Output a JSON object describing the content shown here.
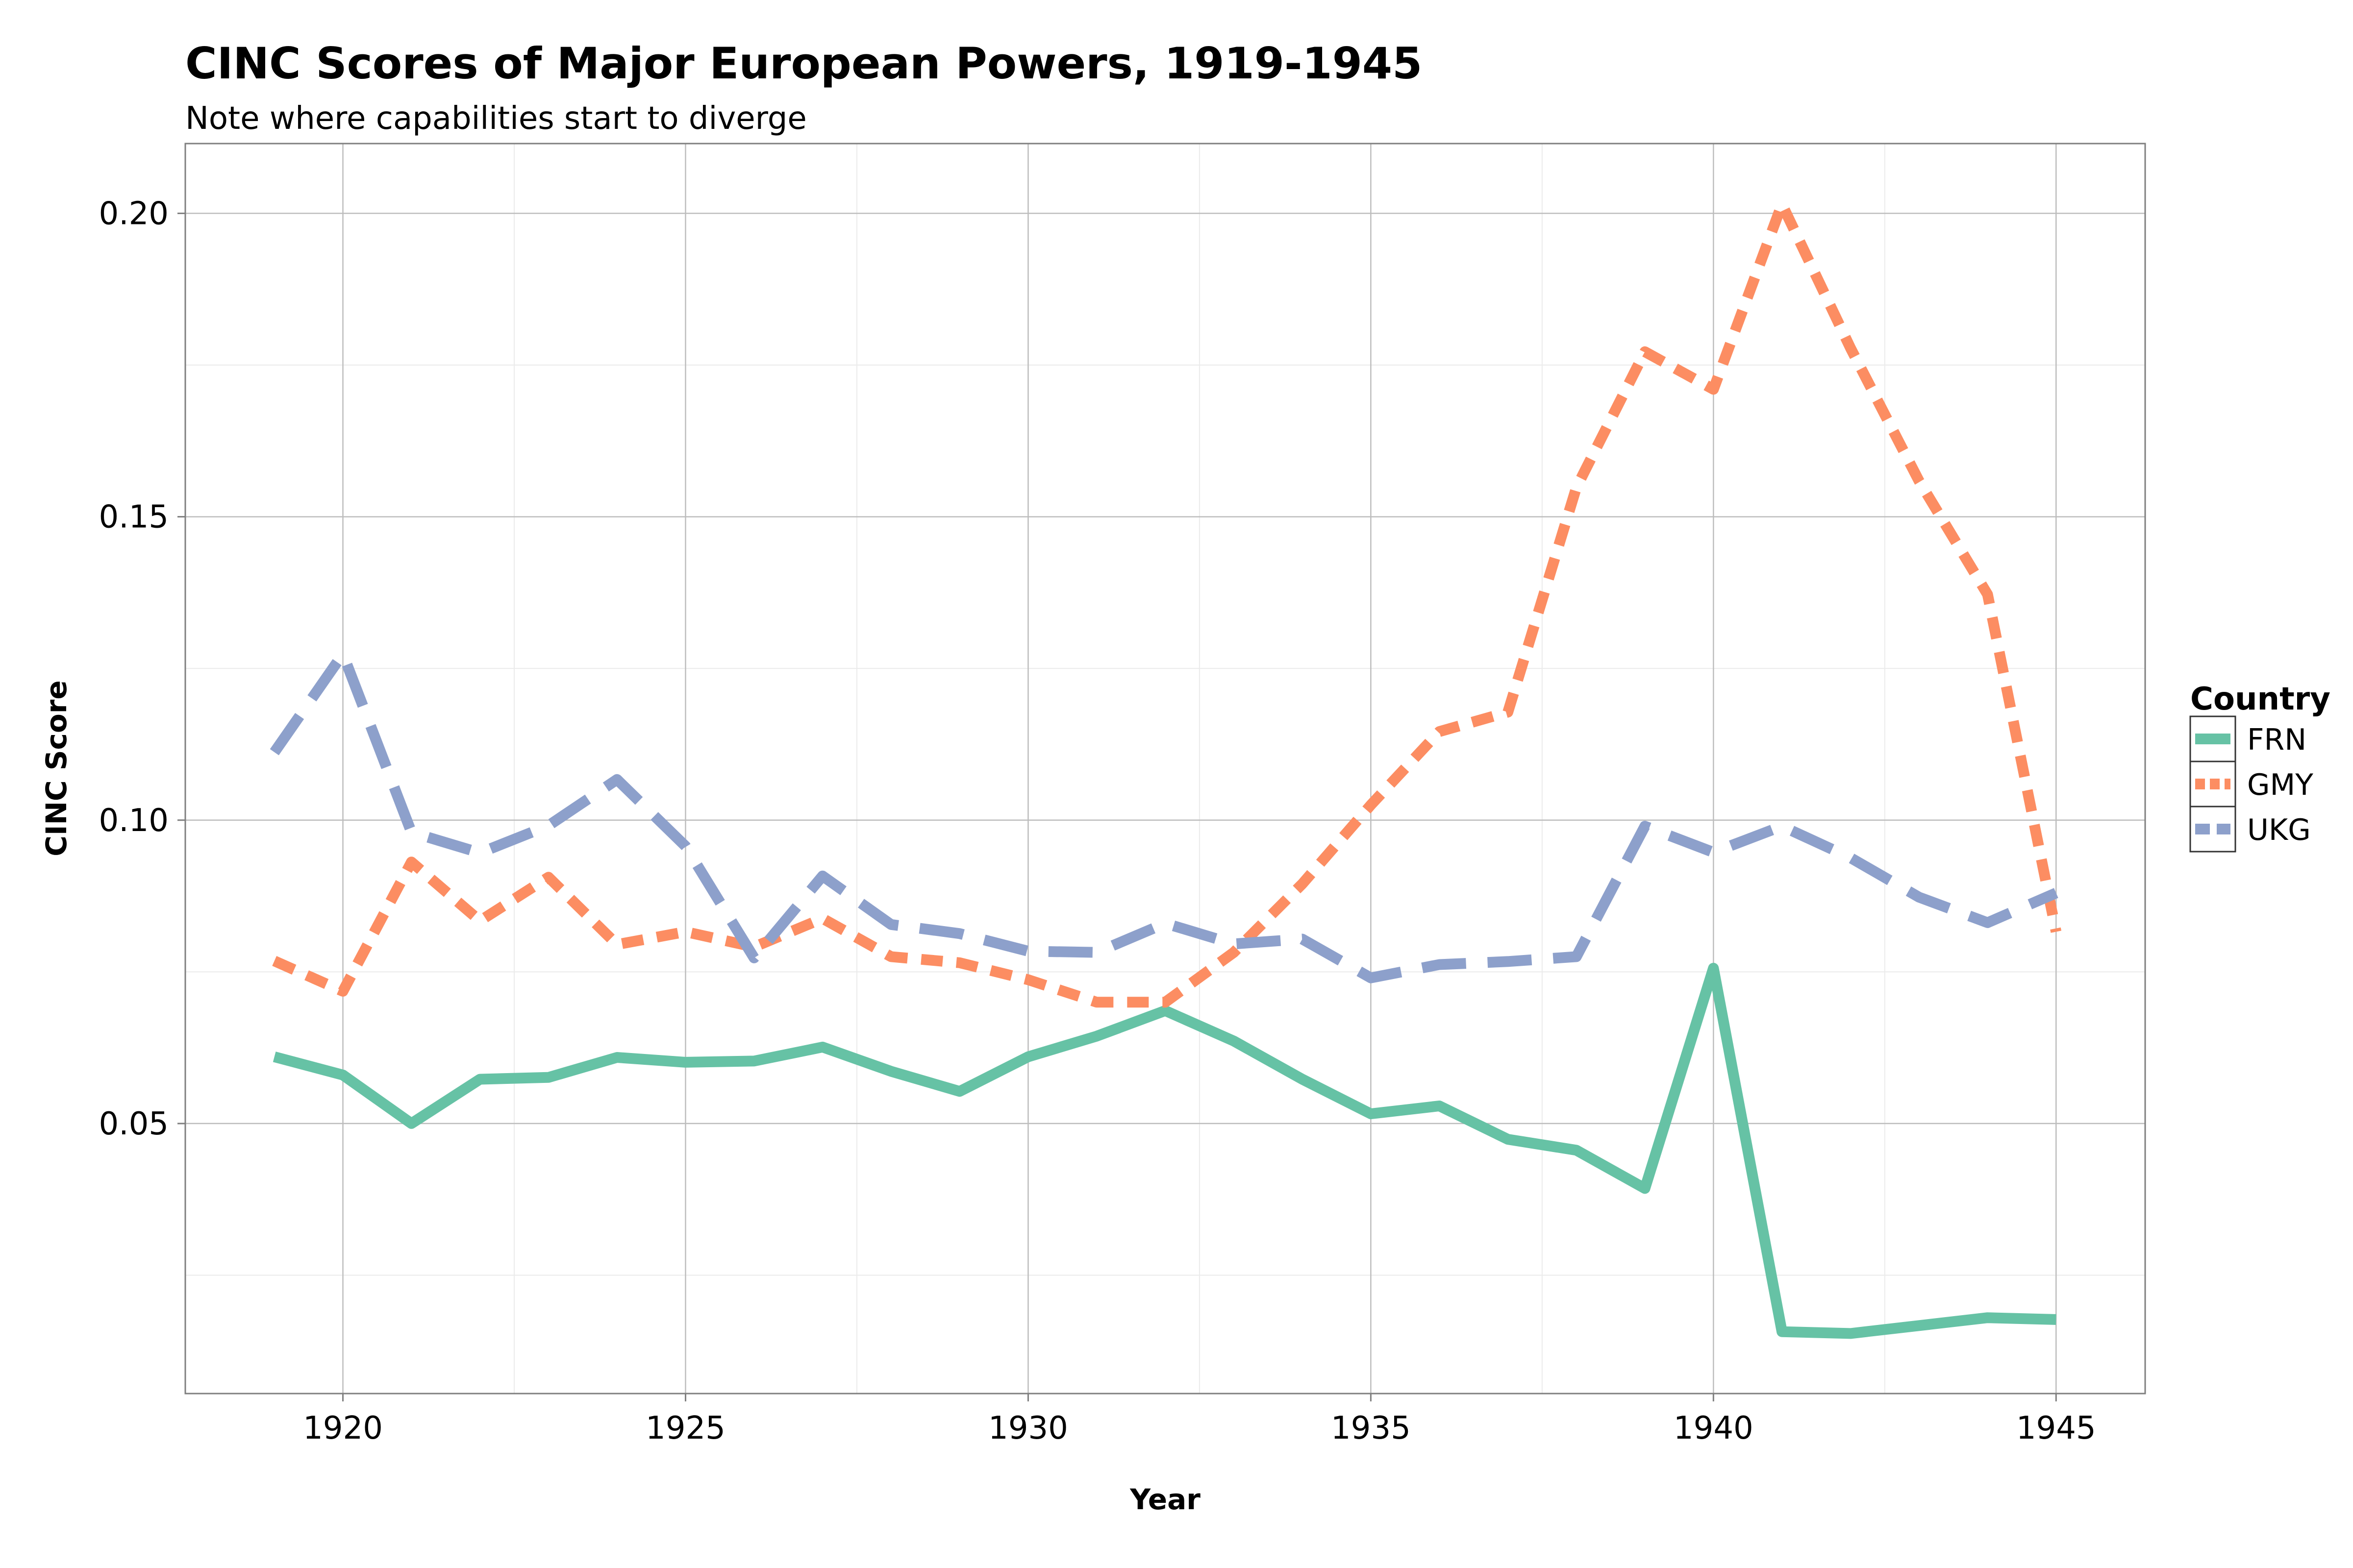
{
  "chart_data": {
    "type": "line",
    "title": "CINC Scores of Major European Powers, 1919-1945",
    "subtitle": "Note where capabilities start to diverge",
    "xlabel": "Year",
    "ylabel": "CINC Score",
    "xlim": [
      1917.7,
      1946.3
    ],
    "ylim": [
      0.0055,
      0.2115
    ],
    "x_ticks": [
      1920,
      1925,
      1930,
      1935,
      1940,
      1945
    ],
    "x_tick_labels": [
      "1920",
      "1925",
      "1930",
      "1935",
      "1940",
      "1945"
    ],
    "y_ticks": [
      0.05,
      0.1,
      0.15,
      0.2
    ],
    "y_tick_labels": [
      "0.05",
      "0.10",
      "0.15",
      "0.20"
    ],
    "grid": true,
    "legend": {
      "title": "Country",
      "placement": "right"
    },
    "x": [
      1919,
      1920,
      1921,
      1922,
      1923,
      1924,
      1925,
      1926,
      1927,
      1928,
      1929,
      1930,
      1931,
      1932,
      1933,
      1934,
      1935,
      1936,
      1937,
      1938,
      1939,
      1940,
      1941,
      1942,
      1943,
      1944,
      1945
    ],
    "series": [
      {
        "name": "FRN",
        "color": "#66c2a5",
        "line_style": "solid",
        "values": [
          0.061,
          0.058,
          0.05,
          0.0573,
          0.0576,
          0.0609,
          0.0601,
          0.0603,
          0.0626,
          0.0586,
          0.0553,
          0.061,
          0.0644,
          0.0686,
          0.0636,
          0.0573,
          0.0516,
          0.0529,
          0.0474,
          0.0456,
          0.0393,
          0.0756,
          0.0157,
          0.0154,
          0.0167,
          0.018,
          0.0177
        ]
      },
      {
        "name": "GMY",
        "color": "#fc8d62",
        "line_style": "dotted",
        "values": [
          0.0768,
          0.0718,
          0.0931,
          0.0834,
          0.0906,
          0.0795,
          0.0816,
          0.0791,
          0.0838,
          0.0775,
          0.0765,
          0.0737,
          0.07,
          0.07,
          0.0782,
          0.0895,
          0.1025,
          0.1146,
          0.1178,
          0.1548,
          0.1772,
          0.171,
          0.2015,
          0.1778,
          0.1559,
          0.1372,
          0.0816
        ]
      },
      {
        "name": "UKG",
        "color": "#8da0cb",
        "line_style": "dashed",
        "values": [
          0.1112,
          0.1274,
          0.098,
          0.0946,
          0.0991,
          0.1067,
          0.0957,
          0.0773,
          0.0908,
          0.0828,
          0.0813,
          0.0784,
          0.0782,
          0.083,
          0.0796,
          0.0804,
          0.074,
          0.0762,
          0.0767,
          0.0775,
          0.099,
          0.0947,
          0.099,
          0.0938,
          0.0873,
          0.0831,
          0.088
        ]
      }
    ]
  }
}
